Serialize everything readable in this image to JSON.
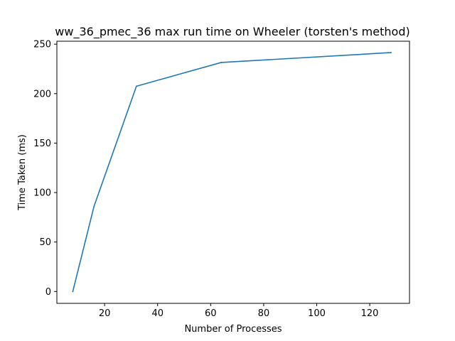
{
  "chart_data": {
    "type": "line",
    "title": "ww_36_pmec_36 max run time on Wheeler (torsten's method)",
    "xlabel": "Number of Processes",
    "ylabel": "Time Taken (ms)",
    "x": [
      8,
      16,
      32,
      64,
      128
    ],
    "series": [
      {
        "values": [
          0,
          86,
          207.5,
          231.5,
          241.5
        ],
        "color": "#1f77b4"
      }
    ],
    "xlim": [
      2,
      135
    ],
    "ylim": [
      -12,
      253
    ],
    "xticks": [
      20,
      40,
      60,
      80,
      100,
      120
    ],
    "yticks": [
      0,
      50,
      100,
      150,
      200,
      250
    ],
    "grid": false,
    "legend": "none"
  }
}
